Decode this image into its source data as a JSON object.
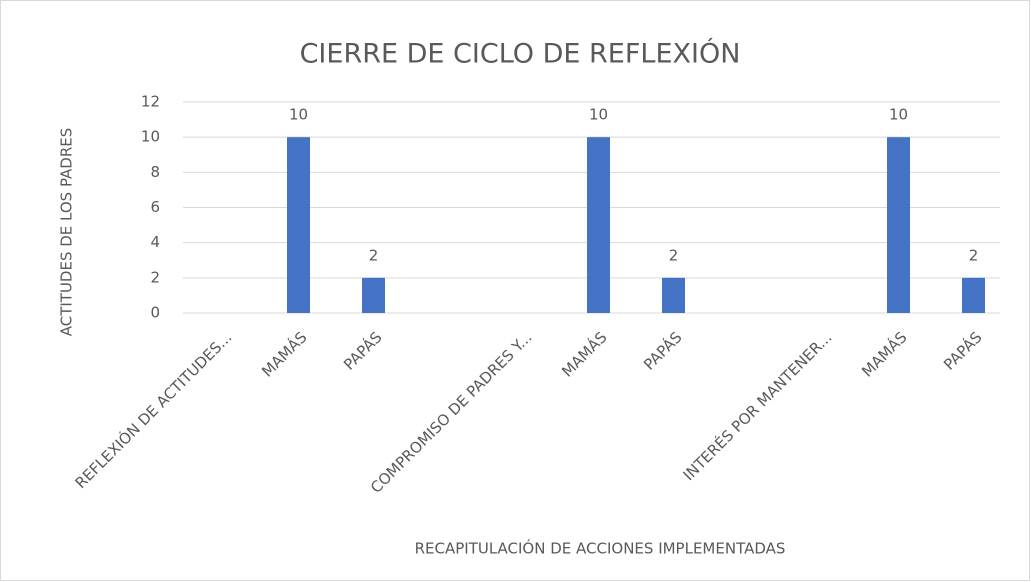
{
  "chart_data": {
    "type": "bar",
    "title": "CIERRE DE CICLO DE REFLEXIÓN",
    "x_label": "RECAPITULACIÓN  DE ACCIONES IMPLEMENTADAS",
    "y_label": "ACTITUDES  DE LOS PADRES",
    "categories": [
      "REFLEXIÓN DE ACTITUDES...",
      "MAMÁS",
      "PAPÁS",
      null,
      "COMPROMISO DE PADRES Y...",
      "MAMÁS",
      "PAPÁS",
      null,
      "INTERÉS POR MANTENER...",
      "MAMÁS",
      "PAPÁS"
    ],
    "values": [
      null,
      10,
      2,
      null,
      null,
      10,
      2,
      null,
      null,
      10,
      2
    ],
    "color": "#4472c4",
    "ylim": [
      0,
      12
    ],
    "yticks": [
      0,
      2,
      4,
      6,
      8,
      10,
      12
    ],
    "grid": true
  }
}
